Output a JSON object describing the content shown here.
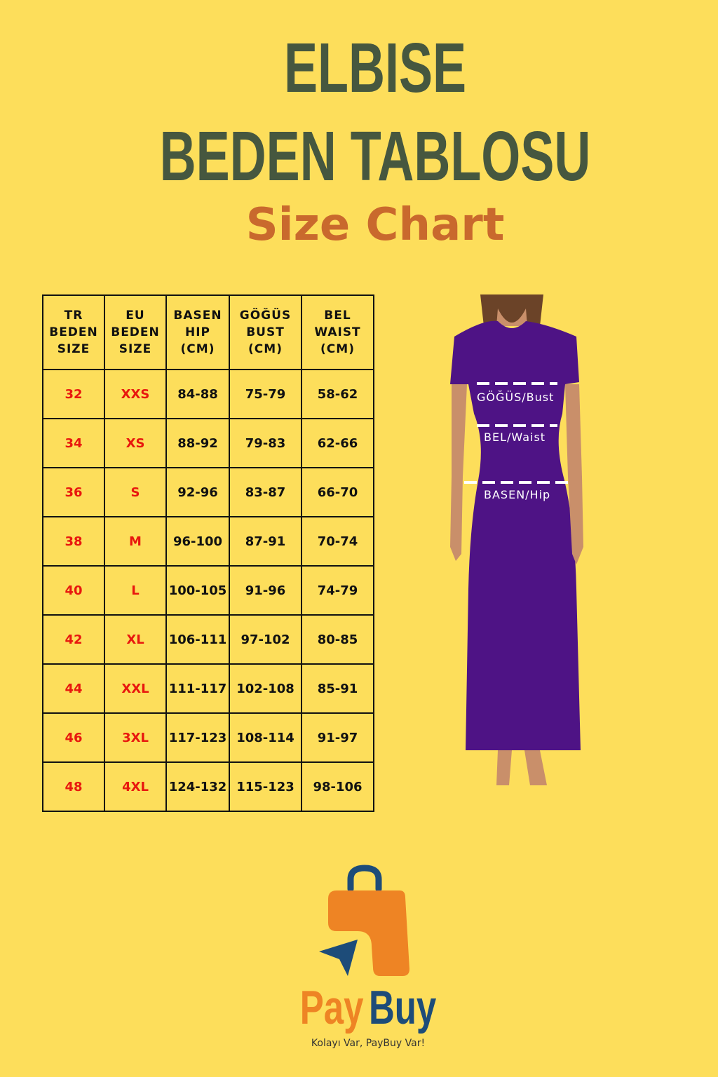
{
  "title_line1": "ELBISE",
  "title_line2": "BEDEN TABLOSU",
  "subtitle": "Size Chart",
  "colors": {
    "background": "#fdde5b",
    "title": "#46573f",
    "subtitle": "#c9692d",
    "size_text": "#e8170e",
    "dress": "#4e1385",
    "logo_orange": "#ee8424",
    "logo_blue": "#1d4c79"
  },
  "table": {
    "headers": [
      [
        "TR",
        "BEDEN",
        "SIZE"
      ],
      [
        "EU",
        "BEDEN",
        "SIZE"
      ],
      [
        "BASEN",
        "HIP",
        "(CM)"
      ],
      [
        "GÖĞÜS",
        "BUST",
        "(CM)"
      ],
      [
        "BEL",
        "WAIST",
        "(CM)"
      ]
    ],
    "rows": [
      [
        "32",
        "XXS",
        "84-88",
        "75-79",
        "58-62"
      ],
      [
        "34",
        "XS",
        "88-92",
        "79-83",
        "62-66"
      ],
      [
        "36",
        "S",
        "92-96",
        "83-87",
        "66-70"
      ],
      [
        "38",
        "M",
        "96-100",
        "87-91",
        "70-74"
      ],
      [
        "40",
        "L",
        "100-105",
        "91-96",
        "74-79"
      ],
      [
        "42",
        "XL",
        "106-111",
        "97-102",
        "80-85"
      ],
      [
        "44",
        "XXL",
        "111-117",
        "102-108",
        "85-91"
      ],
      [
        "46",
        "3XL",
        "117-123",
        "108-114",
        "91-97"
      ],
      [
        "48",
        "4XL",
        "124-132",
        "115-123",
        "98-106"
      ]
    ]
  },
  "figure_labels": {
    "bust": "GÖĞÜS/Bust",
    "waist": "BEL/Waist",
    "hip": "BASEN/Hip"
  },
  "logo": {
    "pay": "Pay",
    "buy": "Buy",
    "tagline": "Kolayı Var, PayBuy Var!"
  }
}
